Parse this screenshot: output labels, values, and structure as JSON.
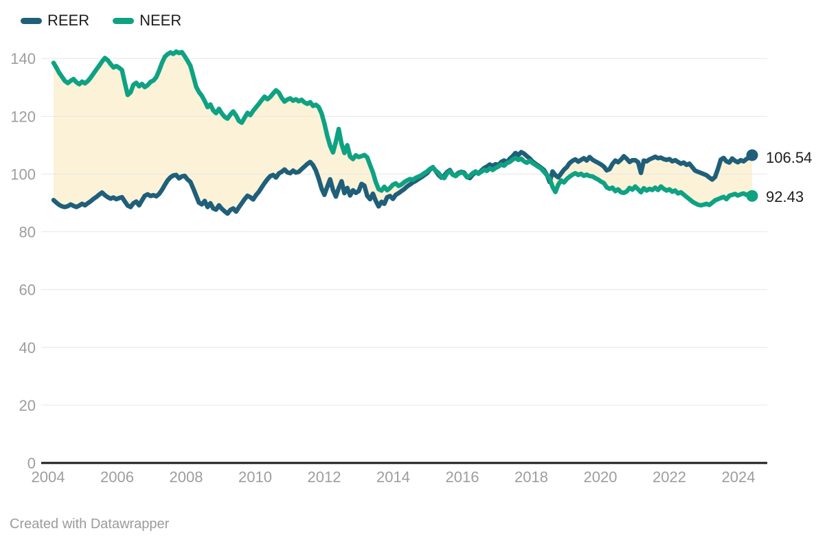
{
  "legend": {
    "items": [
      {
        "label": "REER",
        "color": "#1f5f7a"
      },
      {
        "label": "NEER",
        "color": "#0ea283"
      }
    ]
  },
  "footer": {
    "text": "Created with Datawrapper"
  },
  "chart_data": {
    "type": "line",
    "title": "",
    "xlabel": "",
    "ylabel": "",
    "x_start_year": 2004,
    "x_end_year": 2024.5,
    "x_frequency": "monthly",
    "x_ticks": [
      2004,
      2006,
      2008,
      2010,
      2012,
      2014,
      2016,
      2018,
      2020,
      2022,
      2024
    ],
    "y_ticks": [
      0,
      20,
      40,
      60,
      80,
      100,
      120,
      140
    ],
    "y_range": [
      0,
      140
    ],
    "grid": true,
    "legend_position": "top-left",
    "fill_between_color": "#fbf2d8",
    "grid_color": "#e6e6e6",
    "axis_color": "#1a1a1a",
    "tick_label_color": "#9d9d9d",
    "end_labels": {
      "REER": "106.54",
      "NEER": "92.43"
    },
    "series": [
      {
        "name": "REER",
        "color": "#1f5f7a",
        "values": [
          91.0,
          90.1,
          89.3,
          88.8,
          88.6,
          88.9,
          89.5,
          89.0,
          88.6,
          89.1,
          89.7,
          89.2,
          89.9,
          90.6,
          91.4,
          92.1,
          92.9,
          93.6,
          92.7,
          92.0,
          91.5,
          91.9,
          91.3,
          91.7,
          92.0,
          90.5,
          89.1,
          88.6,
          89.9,
          90.5,
          89.2,
          90.9,
          92.5,
          93.0,
          92.4,
          92.7,
          92.3,
          93.1,
          94.5,
          96.2,
          97.8,
          98.9,
          99.5,
          99.7,
          98.5,
          99.2,
          99.4,
          98.1,
          97.3,
          95.0,
          92.5,
          90.1,
          89.5,
          90.7,
          88.6,
          89.9,
          88.1,
          87.7,
          89.2,
          88.0,
          87.1,
          86.3,
          87.6,
          88.1,
          87.0,
          88.5,
          89.9,
          91.3,
          92.5,
          92.0,
          91.2,
          92.7,
          93.9,
          95.4,
          96.9,
          98.2,
          99.3,
          99.7,
          98.8,
          100.2,
          100.8,
          101.6,
          100.6,
          100.3,
          101.2,
          100.5,
          100.8,
          101.7,
          102.6,
          103.5,
          104.2,
          103.1,
          101.2,
          98.4,
          95.0,
          92.8,
          95.6,
          98.2,
          94.5,
          92.2,
          95.1,
          97.5,
          93.4,
          95.2,
          92.6,
          94.4,
          93.5,
          94.1,
          96.6,
          96.0,
          92.5,
          91.3,
          93.2,
          90.7,
          88.8,
          90.4,
          89.7,
          92.0,
          92.4,
          91.4,
          92.8,
          93.4,
          94.1,
          94.8,
          95.7,
          96.4,
          97.1,
          97.6,
          98.3,
          98.9,
          99.6,
          100.3,
          101.5,
          102.4,
          101.1,
          99.7,
          98.8,
          99.5,
          100.7,
          101.4,
          99.8,
          99.5,
          100.4,
          100.8,
          100.5,
          99.0,
          98.6,
          99.8,
          100.6,
          100.2,
          101.2,
          102.1,
          102.6,
          103.3,
          102.8,
          103.4,
          103.1,
          104.2,
          104.7,
          104.1,
          105.3,
          106.2,
          107.3,
          106.6,
          107.6,
          107.1,
          106.2,
          105.4,
          104.3,
          103.6,
          102.9,
          102.2,
          101.4,
          99.8,
          97.2,
          100.9,
          99.6,
          98.9,
          100.2,
          101.5,
          102.4,
          103.8,
          104.6,
          105.1,
          104.3,
          104.9,
          105.5,
          104.7,
          105.9,
          105.0,
          104.4,
          103.9,
          103.3,
          102.6,
          101.3,
          101.7,
          103.5,
          104.7,
          104.1,
          105.0,
          106.2,
          105.3,
          104.2,
          104.8,
          104.8,
          104.1,
          100.4,
          104.7,
          104.4,
          105.1,
          105.5,
          106.0,
          105.5,
          105.7,
          105.2,
          104.9,
          105.2,
          104.4,
          104.8,
          104.2,
          103.6,
          104.0,
          103.2,
          103.6,
          102.4,
          101.2,
          100.8,
          100.4,
          100.0,
          99.6,
          98.8,
          98.1,
          99.0,
          101.8,
          105.0,
          105.6,
          104.4,
          104.0,
          105.4,
          104.6,
          104.1,
          104.8,
          104.4,
          105.2,
          105.8,
          106.54
        ]
      },
      {
        "name": "NEER",
        "color": "#0ea283",
        "values": [
          138.5,
          136.8,
          135.0,
          133.6,
          132.2,
          131.5,
          132.3,
          132.9,
          131.8,
          131.1,
          132.0,
          131.4,
          132.2,
          133.4,
          134.8,
          136.2,
          137.5,
          139.0,
          140.2,
          139.4,
          138.1,
          136.9,
          137.4,
          136.8,
          136.0,
          131.5,
          127.4,
          128.3,
          130.9,
          131.6,
          130.4,
          131.2,
          130.1,
          130.8,
          131.9,
          132.4,
          133.5,
          135.8,
          138.4,
          140.6,
          141.5,
          142.1,
          141.6,
          142.4,
          141.9,
          142.2,
          140.8,
          139.2,
          137.5,
          133.9,
          130.2,
          128.4,
          127.1,
          125.3,
          123.2,
          124.1,
          122.0,
          121.1,
          122.6,
          121.0,
          119.8,
          119.2,
          120.6,
          121.7,
          120.3,
          118.4,
          117.8,
          119.5,
          121.2,
          120.4,
          121.9,
          123.1,
          124.3,
          125.6,
          126.8,
          125.9,
          126.7,
          127.9,
          129.0,
          128.2,
          126.4,
          125.1,
          125.8,
          126.2,
          125.4,
          125.9,
          125.2,
          125.7,
          124.8,
          124.3,
          124.9,
          123.6,
          124.0,
          123.2,
          121.0,
          117.5,
          113.2,
          109.8,
          107.5,
          111.2,
          115.6,
          110.4,
          107.3,
          110.0,
          106.1,
          105.2,
          106.5,
          105.9,
          106.2,
          106.6,
          105.8,
          103.1,
          100.6,
          97.2,
          94.8,
          94.3,
          95.6,
          94.4,
          95.2,
          96.3,
          96.8,
          95.9,
          96.4,
          97.2,
          97.8,
          98.3,
          98.0,
          98.7,
          99.1,
          99.6,
          100.3,
          100.9,
          101.8,
          102.3,
          101.2,
          100.4,
          99.1,
          98.6,
          100.2,
          101.1,
          99.8,
          99.3,
          100.1,
          100.6,
          100.2,
          98.9,
          99.4,
          100.3,
          100.9,
          100.1,
          100.8,
          101.5,
          101.1,
          102.0,
          101.4,
          102.1,
          102.6,
          103.3,
          102.9,
          103.8,
          104.2,
          105.0,
          105.6,
          104.9,
          105.3,
          104.4,
          103.9,
          104.6,
          103.8,
          103.2,
          102.5,
          101.9,
          100.8,
          99.6,
          98.4,
          95.6,
          93.8,
          96.3,
          97.8,
          97.1,
          98.3,
          99.1,
          99.8,
          100.3,
          99.7,
          100.1,
          99.4,
          99.8,
          99.3,
          99.2,
          98.6,
          98.1,
          97.4,
          96.9,
          95.4,
          94.9,
          95.3,
          94.1,
          94.7,
          93.7,
          93.5,
          94.0,
          95.2,
          94.6,
          95.7,
          94.7,
          93.7,
          95.1,
          94.3,
          94.9,
          94.5,
          95.3,
          94.5,
          95.7,
          94.9,
          94.3,
          94.7,
          93.9,
          94.3,
          93.3,
          93.7,
          92.9,
          92.1,
          91.3,
          90.5,
          89.9,
          89.4,
          89.2,
          89.4,
          89.7,
          89.3,
          90.1,
          90.9,
          91.3,
          91.7,
          92.1,
          91.3,
          92.5,
          92.8,
          93.1,
          92.6,
          93.0,
          93.3,
          92.8,
          93.2,
          92.43
        ]
      }
    ]
  }
}
